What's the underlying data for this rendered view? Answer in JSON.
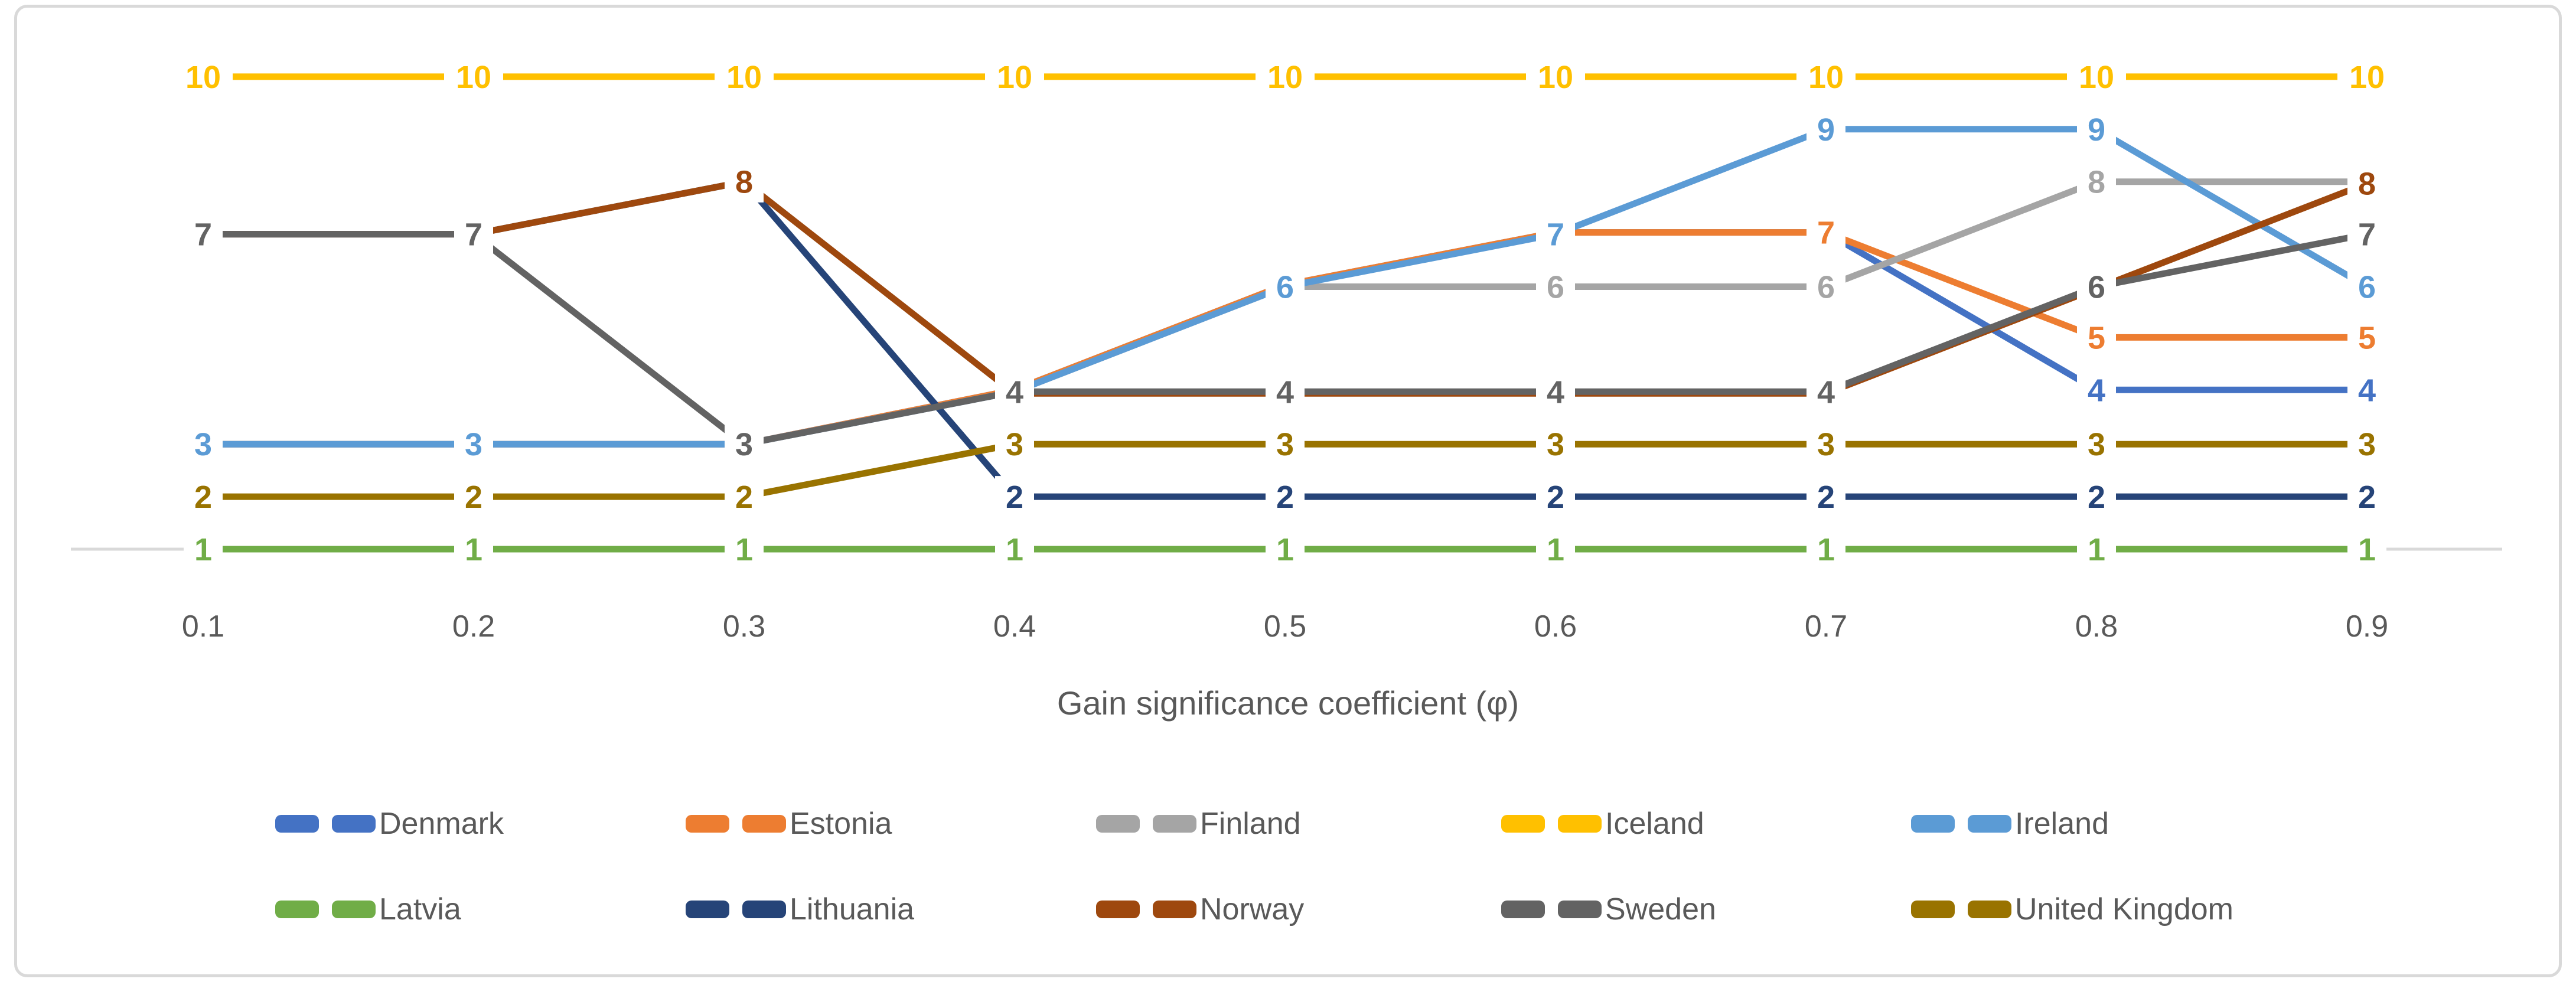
{
  "figure": {
    "background": "#FFFFFF",
    "frame_border_color": "#D9D9D9",
    "axis_line_color": "#D9D9D9",
    "text_color": "#595959"
  },
  "chart_data": {
    "type": "line",
    "title": "",
    "xlabel": "Gain significance coefficient (φ)",
    "xlabel_plain": "Gain significance coefficient (",
    "xlabel_symbol": "φ",
    "xlabel_close": ")",
    "x": [
      0.1,
      0.2,
      0.3,
      0.4,
      0.5,
      0.6,
      0.7,
      0.8,
      0.9
    ],
    "x_tick_labels": [
      "0.1",
      "0.2",
      "0.3",
      "0.4",
      "0.5",
      "0.6",
      "0.7",
      "0.8",
      "0.9"
    ],
    "ylim": [
      1,
      10
    ],
    "grid": false,
    "value_labels": true,
    "legend_position": "bottom",
    "legend_rows": [
      [
        "Denmark",
        "Estonia",
        "Finland",
        "Iceland",
        "Ireland"
      ],
      [
        "Latvia",
        "Lithuania",
        "Norway",
        "Sweden",
        "United Kingdom"
      ]
    ],
    "series": [
      {
        "name": "Denmark",
        "color": "#4472C4",
        "values": [
          3,
          3,
          3,
          4,
          6,
          7,
          7,
          4,
          4
        ]
      },
      {
        "name": "Estonia",
        "color": "#ED7D31",
        "values": [
          3,
          3,
          3,
          4,
          6,
          7,
          7,
          5,
          5
        ]
      },
      {
        "name": "Finland",
        "color": "#A5A5A5",
        "values": [
          3,
          3,
          3,
          4,
          6,
          6,
          6,
          8,
          8
        ]
      },
      {
        "name": "Iceland",
        "color": "#FFC000",
        "values": [
          10,
          10,
          10,
          10,
          10,
          10,
          10,
          10,
          10
        ]
      },
      {
        "name": "Ireland",
        "color": "#5B9BD5",
        "values": [
          3,
          3,
          3,
          4,
          6,
          7,
          9,
          9,
          6
        ]
      },
      {
        "name": "Latvia",
        "color": "#70AD47",
        "values": [
          1,
          1,
          1,
          1,
          1,
          1,
          1,
          1,
          1
        ]
      },
      {
        "name": "Lithuania",
        "color": "#264478",
        "values": [
          7,
          7,
          8,
          2,
          2,
          2,
          2,
          2,
          2
        ]
      },
      {
        "name": "Norway",
        "color": "#9E480E",
        "values": [
          7,
          7,
          8,
          4,
          4,
          4,
          4,
          6,
          8
        ]
      },
      {
        "name": "Sweden",
        "color": "#636363",
        "values": [
          7,
          7,
          3,
          4,
          4,
          4,
          4,
          6,
          7
        ]
      },
      {
        "name": "United Kingdom",
        "color": "#997300",
        "values": [
          2,
          2,
          2,
          3,
          3,
          3,
          3,
          3,
          3
        ]
      }
    ]
  }
}
